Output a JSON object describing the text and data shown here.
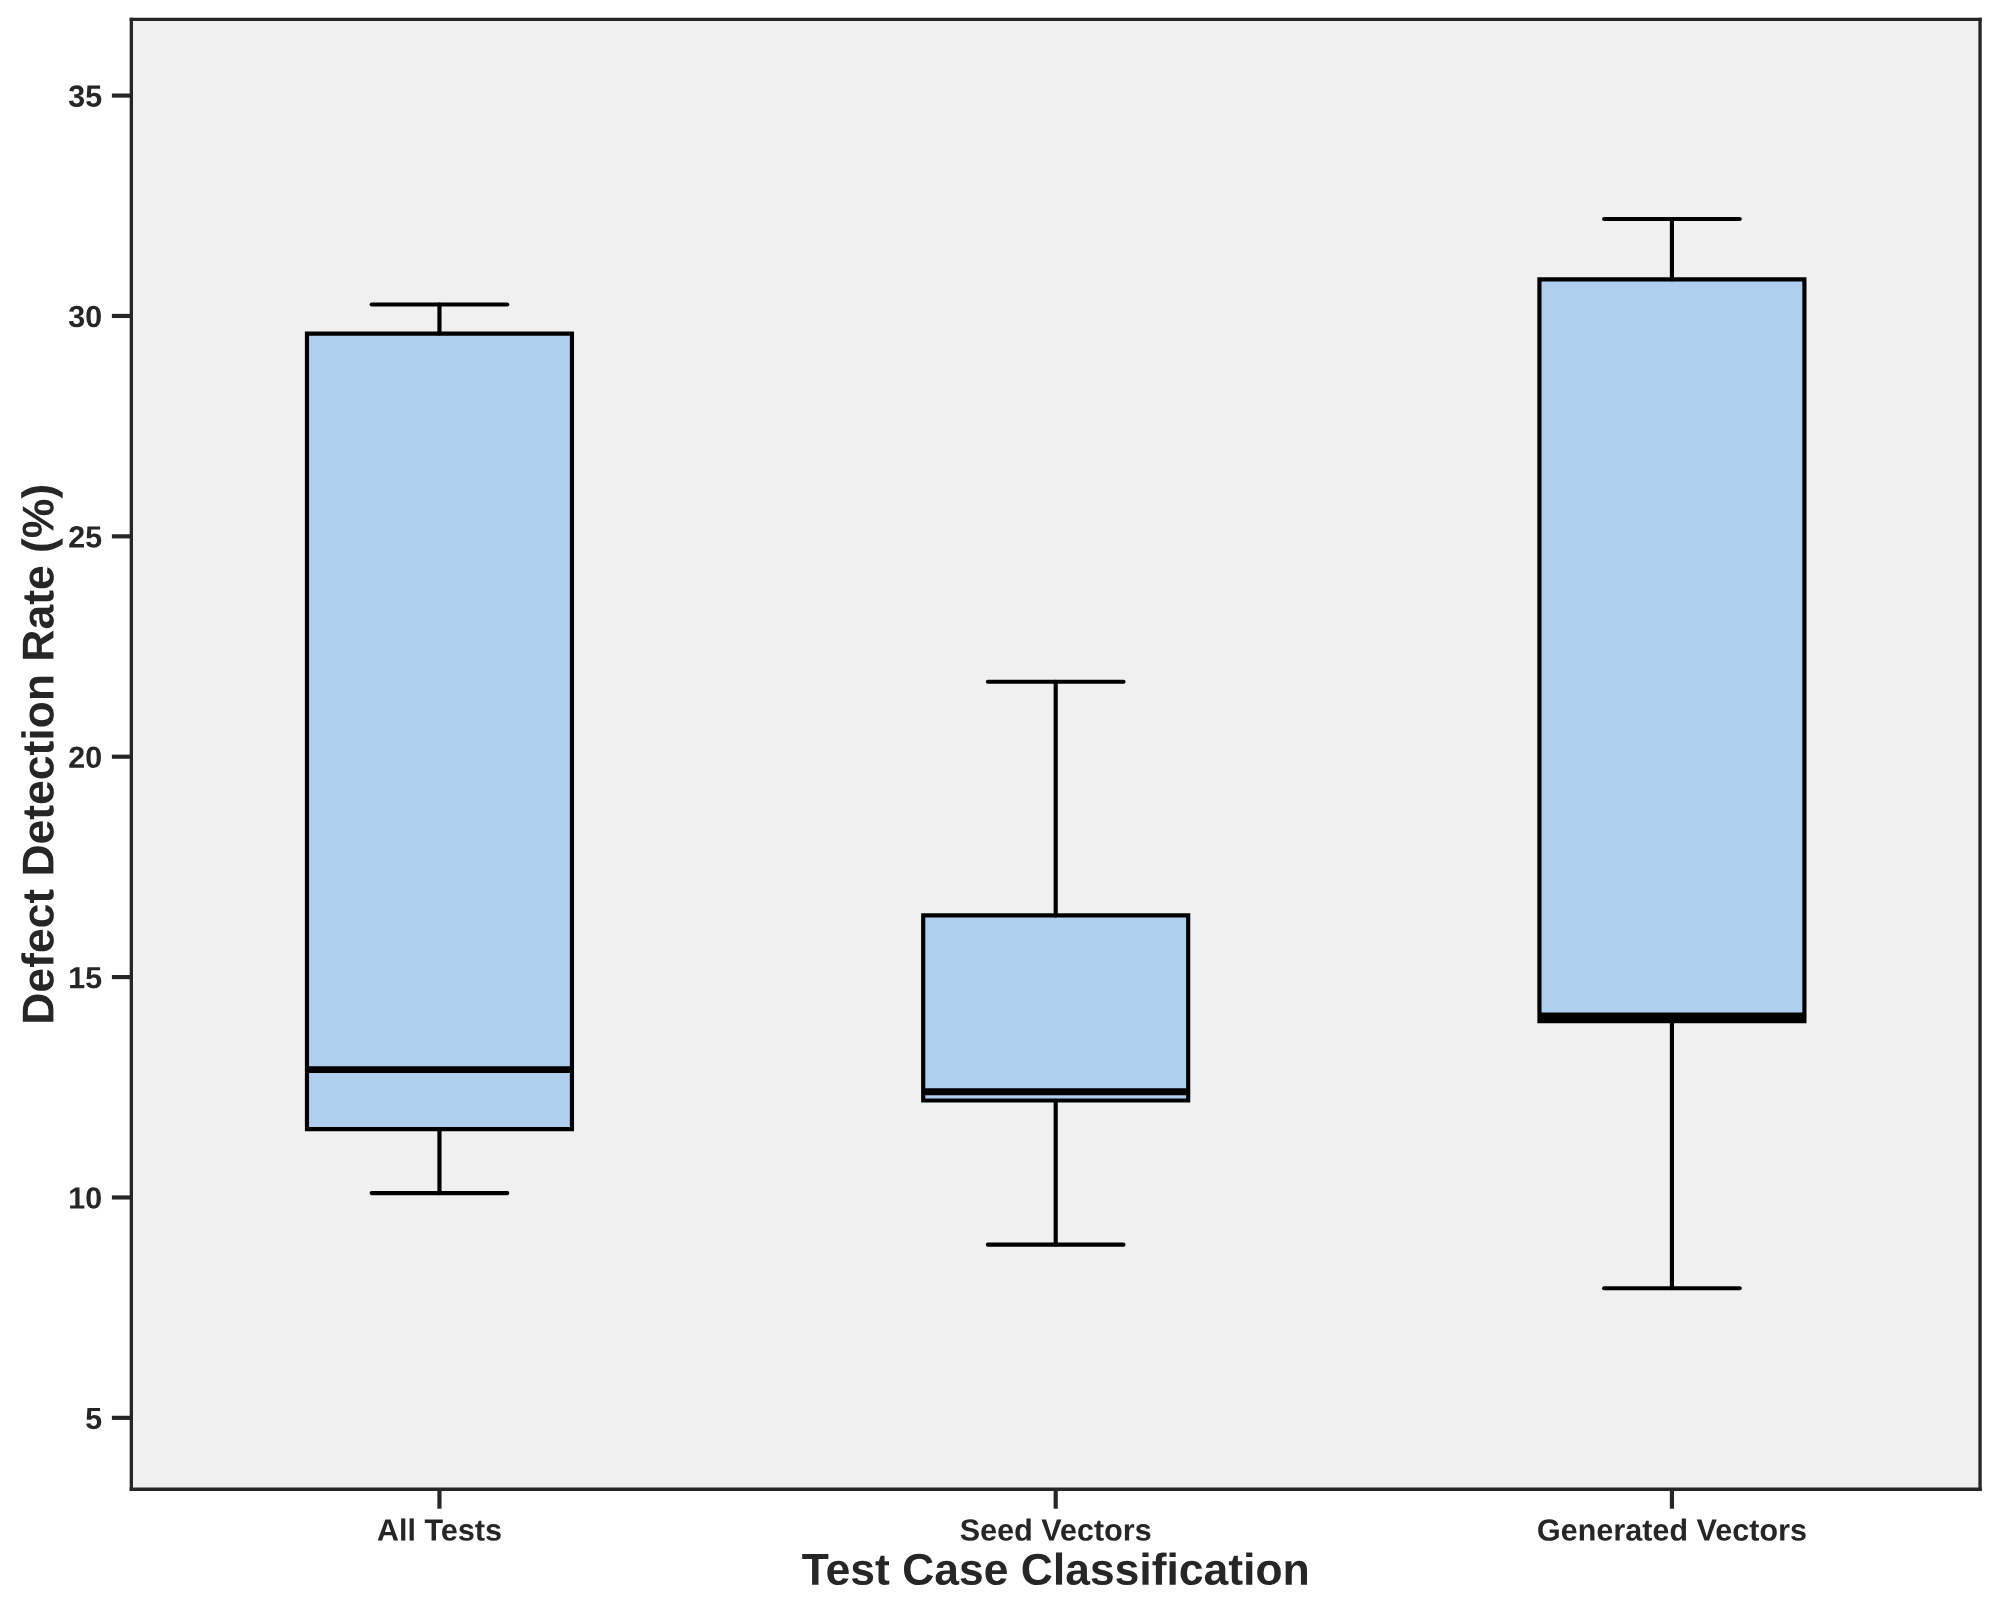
{
  "chart_data": {
    "type": "box",
    "xlabel": "Test Case Classification",
    "ylabel": "Defect Detection Rate (%)",
    "categories": [
      "All Tests",
      "Seed Vectors",
      "Generated Vectors"
    ],
    "color": "#aecfee",
    "boxes": [
      {
        "low": 10.1,
        "q1": 11.55,
        "median": 12.9,
        "q3": 29.6,
        "high": 30.26
      },
      {
        "low": 8.93,
        "q1": 12.2,
        "median": 12.4,
        "q3": 16.4,
        "high": 21.7
      },
      {
        "low": 7.94,
        "q1": 14.0,
        "median": 14.12,
        "q3": 30.83,
        "high": 32.2
      }
    ],
    "ylim": [
      3.38,
      36.73
    ],
    "yticks": [
      5,
      10,
      15,
      20,
      25,
      30,
      35
    ],
    "grid": false,
    "legend": false
  }
}
